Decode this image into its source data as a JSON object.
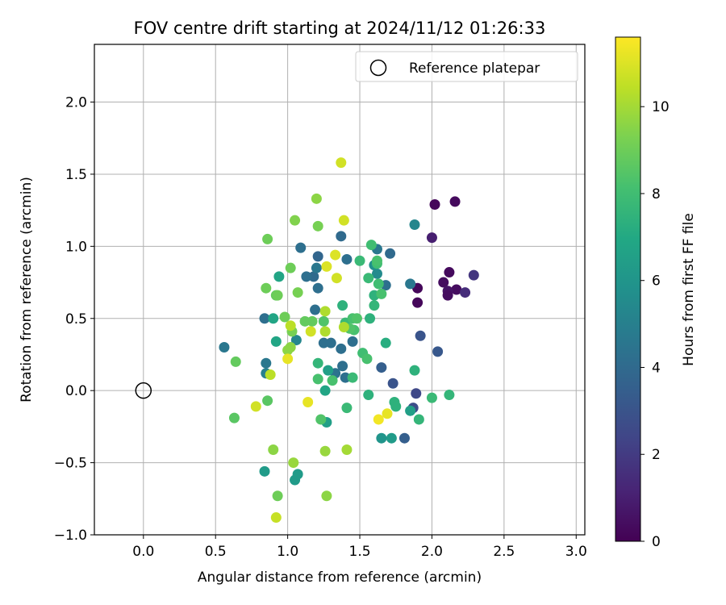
{
  "chart_data": {
    "type": "scatter",
    "title": "FOV centre drift starting at 2024/11/12 01:26:33",
    "xlabel": "Angular distance from reference (arcmin)",
    "ylabel": "Rotation from reference (arcmin)",
    "xlim": [
      -0.34,
      3.06
    ],
    "ylim": [
      -1.0,
      2.4
    ],
    "xticks": [
      0.0,
      0.5,
      1.0,
      1.5,
      2.0,
      2.5,
      3.0
    ],
    "xtick_labels": [
      "0.0",
      "0.5",
      "1.0",
      "1.5",
      "2.0",
      "2.5",
      "3.0"
    ],
    "yticks": [
      -1.0,
      -0.5,
      0.0,
      0.5,
      1.0,
      1.5,
      2.0
    ],
    "ytick_labels": [
      "−1.0",
      "−0.5",
      "0.0",
      "0.5",
      "1.0",
      "1.5",
      "2.0"
    ],
    "grid": true,
    "legend": {
      "placement": "top-right",
      "entries": [
        "Reference platepar"
      ]
    },
    "reference_point": {
      "x": 0.0,
      "y": 0.0
    },
    "colorbar": {
      "label": "Hours from first FF file",
      "range": [
        0,
        11.6
      ],
      "ticks": [
        0,
        2,
        4,
        6,
        8,
        10
      ],
      "tick_labels": [
        "0",
        "2",
        "4",
        "6",
        "8",
        "10"
      ],
      "colormap": "viridis"
    },
    "points": [
      [
        2.16,
        1.31,
        0.3
      ],
      [
        2.02,
        1.29,
        0.2
      ],
      [
        2.0,
        1.06,
        1.0
      ],
      [
        2.12,
        0.82,
        0.3
      ],
      [
        2.08,
        0.75,
        0.4
      ],
      [
        2.17,
        0.7,
        0.4
      ],
      [
        2.11,
        0.69,
        0.6
      ],
      [
        2.11,
        0.66,
        0.4
      ],
      [
        2.23,
        0.68,
        1.5
      ],
      [
        2.29,
        0.8,
        1.8
      ],
      [
        1.9,
        0.71,
        0.2
      ],
      [
        1.9,
        0.61,
        0.2
      ],
      [
        1.92,
        0.38,
        3.0
      ],
      [
        2.04,
        0.27,
        3.2
      ],
      [
        1.85,
        0.74,
        4.6
      ],
      [
        1.88,
        1.15,
        5.3
      ],
      [
        1.89,
        -0.02,
        2.5
      ],
      [
        1.87,
        -0.12,
        2.7
      ],
      [
        1.81,
        -0.33,
        3.5
      ],
      [
        1.73,
        0.05,
        3.0
      ],
      [
        1.65,
        0.16,
        3.5
      ],
      [
        1.71,
        0.95,
        4.0
      ],
      [
        1.68,
        0.73,
        4.2
      ],
      [
        1.62,
        0.98,
        4.6
      ],
      [
        1.37,
        1.07,
        4.0
      ],
      [
        1.41,
        0.91,
        4.2
      ],
      [
        1.21,
        0.93,
        3.8
      ],
      [
        1.18,
        0.79,
        4.0
      ],
      [
        1.13,
        0.79,
        4.2
      ],
      [
        1.09,
        0.99,
        4.2
      ],
      [
        1.2,
        0.85,
        4.6
      ],
      [
        1.21,
        0.71,
        4.2
      ],
      [
        1.19,
        0.56,
        4.2
      ],
      [
        1.25,
        0.33,
        4.2
      ],
      [
        1.3,
        0.33,
        4.2
      ],
      [
        1.37,
        0.29,
        4.2
      ],
      [
        1.45,
        0.34,
        4.2
      ],
      [
        1.33,
        0.12,
        4.4
      ],
      [
        1.4,
        0.09,
        4.2
      ],
      [
        1.38,
        0.17,
        4.2
      ],
      [
        0.84,
        0.5,
        4.2
      ],
      [
        0.56,
        0.3,
        4.6
      ],
      [
        0.85,
        0.19,
        4.6
      ],
      [
        0.85,
        0.12,
        5.0
      ],
      [
        1.06,
        0.35,
        5.3
      ],
      [
        1.62,
        0.81,
        5.5
      ],
      [
        1.6,
        0.87,
        5.8
      ],
      [
        1.65,
        -0.33,
        6.0
      ],
      [
        1.72,
        -0.33,
        6.3
      ],
      [
        1.85,
        -0.14,
        6.5
      ],
      [
        0.84,
        -0.56,
        6.3
      ],
      [
        1.05,
        -0.62,
        6.3
      ],
      [
        1.07,
        -0.58,
        6.3
      ],
      [
        1.27,
        -0.22,
        6.5
      ],
      [
        1.26,
        0.0,
        6.8
      ],
      [
        1.28,
        0.14,
        6.5
      ],
      [
        0.94,
        0.79,
        6.8
      ],
      [
        0.9,
        0.5,
        6.8
      ],
      [
        0.92,
        0.34,
        6.8
      ],
      [
        1.68,
        0.33,
        7.2
      ],
      [
        1.74,
        -0.08,
        7.4
      ],
      [
        1.75,
        -0.11,
        7.4
      ],
      [
        1.91,
        -0.2,
        7.6
      ],
      [
        1.88,
        0.14,
        7.4
      ],
      [
        2.0,
        -0.05,
        7.8
      ],
      [
        2.12,
        -0.03,
        7.6
      ],
      [
        1.56,
        -0.03,
        7.4
      ],
      [
        1.6,
        0.66,
        7.4
      ],
      [
        1.57,
        0.5,
        7.4
      ],
      [
        1.6,
        0.59,
        7.6
      ],
      [
        1.56,
        0.78,
        7.8
      ],
      [
        1.58,
        1.01,
        8.0
      ],
      [
        1.62,
        0.88,
        8.0
      ],
      [
        1.62,
        0.9,
        8.2
      ],
      [
        1.63,
        0.74,
        8.0
      ],
      [
        1.65,
        0.67,
        8.2
      ],
      [
        1.5,
        0.9,
        7.8
      ],
      [
        1.38,
        0.59,
        7.4
      ],
      [
        1.4,
        0.47,
        7.8
      ],
      [
        1.45,
        0.5,
        8.2
      ],
      [
        1.48,
        0.5,
        8.4
      ],
      [
        1.46,
        0.42,
        8.2
      ],
      [
        1.43,
        0.43,
        8.4
      ],
      [
        1.52,
        0.26,
        8.0
      ],
      [
        1.55,
        0.22,
        8.2
      ],
      [
        1.45,
        0.09,
        7.8
      ],
      [
        1.41,
        -0.12,
        7.8
      ],
      [
        1.31,
        0.07,
        8.2
      ],
      [
        1.21,
        0.19,
        7.6
      ],
      [
        1.21,
        0.08,
        8.2
      ],
      [
        1.23,
        -0.2,
        8.4
      ],
      [
        1.25,
        0.48,
        8.4
      ],
      [
        1.17,
        0.48,
        8.8
      ],
      [
        1.12,
        0.48,
        8.8
      ],
      [
        1.07,
        0.68,
        9.2
      ],
      [
        1.02,
        0.85,
        9.0
      ],
      [
        0.92,
        0.66,
        8.8
      ],
      [
        0.93,
        0.66,
        9.0
      ],
      [
        0.85,
        0.71,
        9.0
      ],
      [
        0.98,
        0.51,
        9.0
      ],
      [
        1.03,
        0.41,
        9.2
      ],
      [
        1.02,
        0.3,
        9.6
      ],
      [
        1.0,
        0.28,
        9.6
      ],
      [
        0.86,
        -0.07,
        8.6
      ],
      [
        0.63,
        -0.19,
        8.6
      ],
      [
        0.64,
        0.2,
        8.8
      ],
      [
        0.86,
        1.05,
        9.0
      ],
      [
        1.05,
        1.18,
        9.4
      ],
      [
        1.2,
        1.33,
        9.6
      ],
      [
        1.21,
        1.14,
        9.2
      ],
      [
        0.93,
        -0.73,
        9.0
      ],
      [
        0.9,
        -0.41,
        9.6
      ],
      [
        1.04,
        -0.5,
        9.8
      ],
      [
        1.27,
        -0.73,
        9.6
      ],
      [
        1.26,
        -0.42,
        9.8
      ],
      [
        1.41,
        -0.41,
        10.0
      ],
      [
        1.39,
        0.44,
        10.2
      ],
      [
        1.26,
        0.41,
        10.2
      ],
      [
        1.26,
        0.55,
        10.2
      ],
      [
        1.02,
        0.45,
        10.4
      ],
      [
        0.88,
        0.11,
        10.4
      ],
      [
        0.78,
        -0.11,
        10.8
      ],
      [
        0.92,
        -0.88,
        10.6
      ],
      [
        1.16,
        0.41,
        10.8
      ],
      [
        1.34,
        0.78,
        10.8
      ],
      [
        1.33,
        0.94,
        11.0
      ],
      [
        1.27,
        0.86,
        11.0
      ],
      [
        1.39,
        1.18,
        10.8
      ],
      [
        1.37,
        1.58,
        10.8
      ],
      [
        1.0,
        0.22,
        11.2
      ],
      [
        1.14,
        -0.08,
        11.2
      ],
      [
        1.63,
        -0.2,
        11.4
      ],
      [
        1.69,
        -0.16,
        11.2
      ]
    ]
  }
}
